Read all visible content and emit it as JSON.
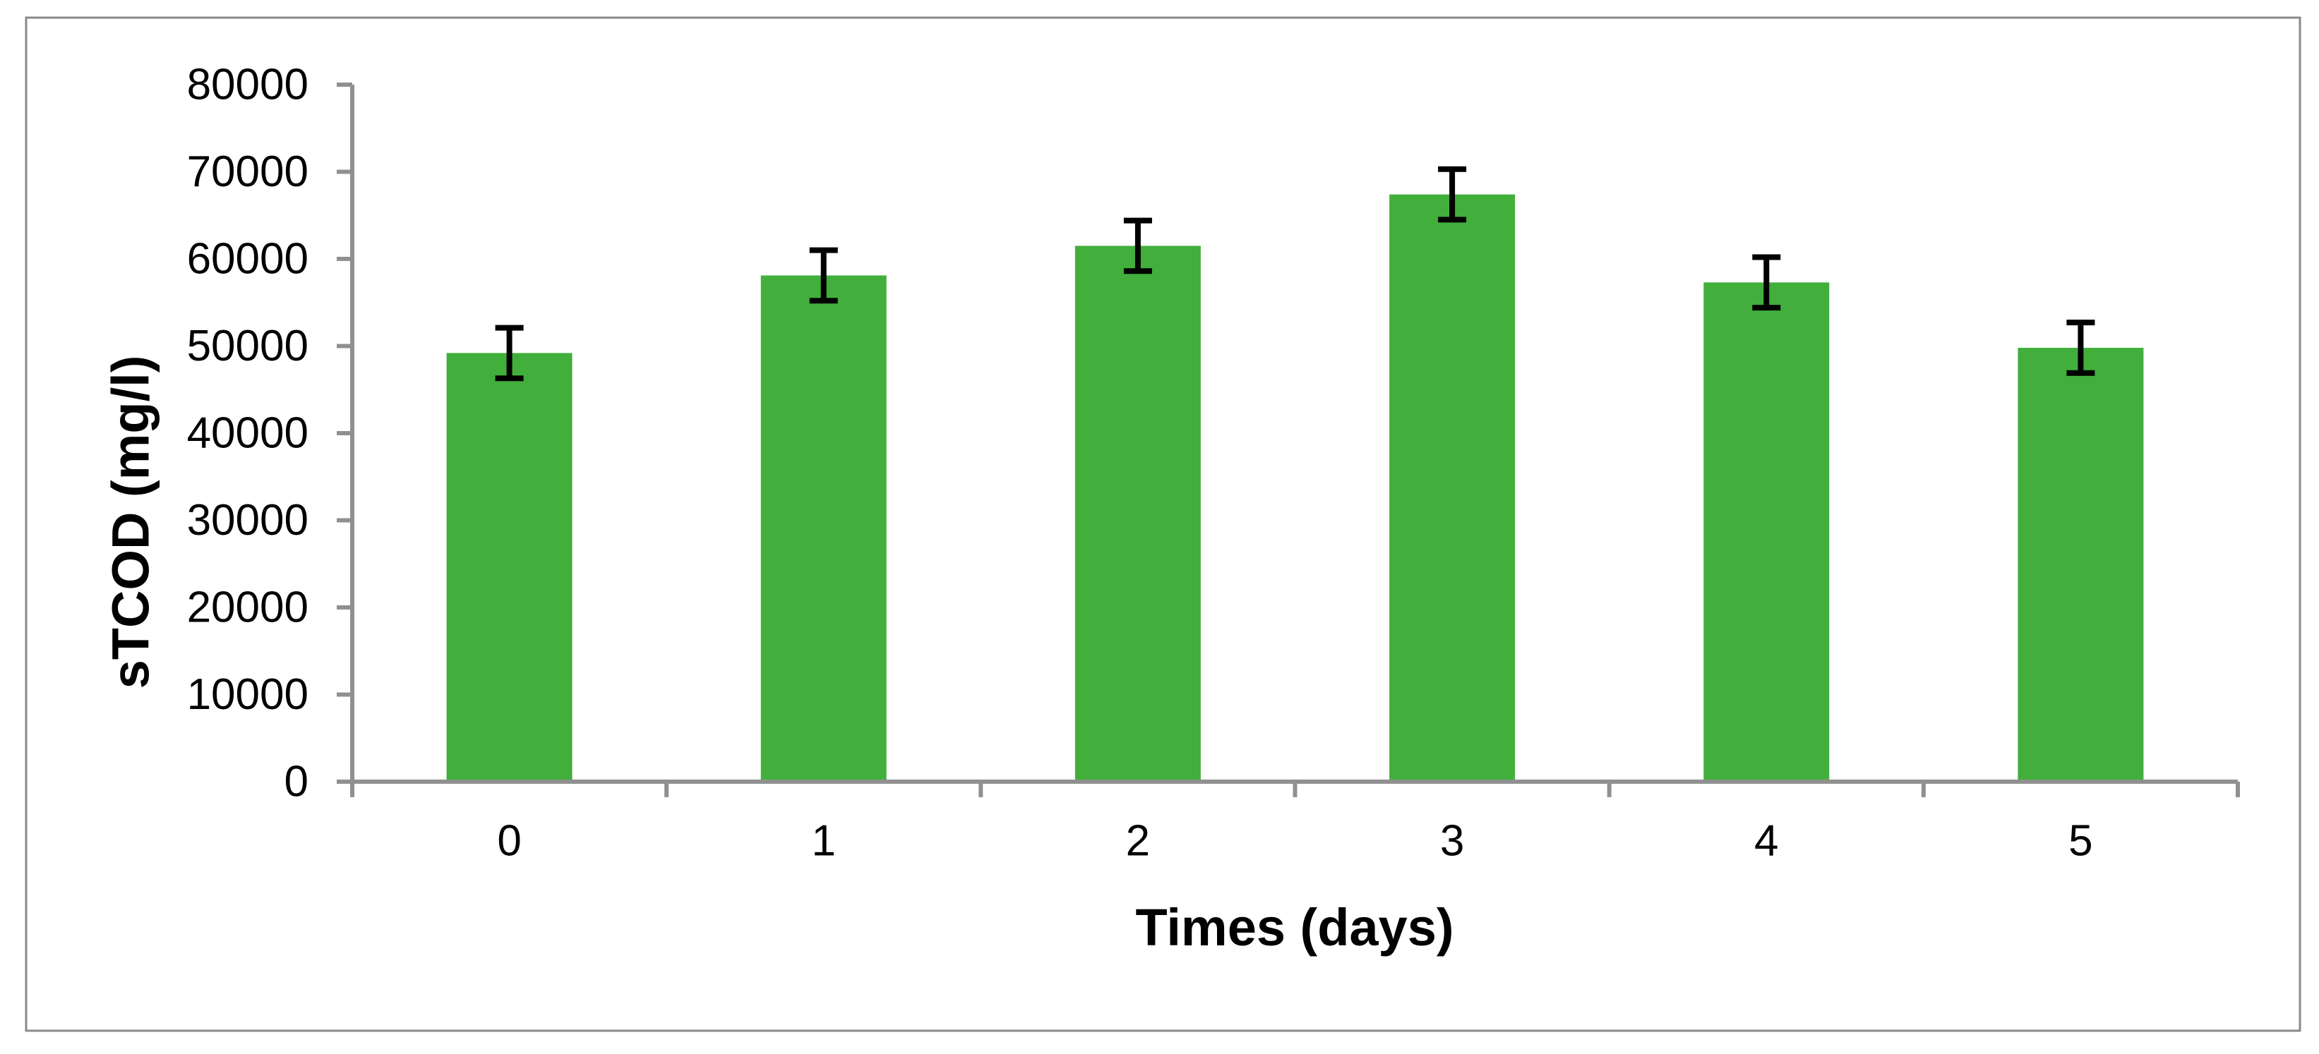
{
  "chart_data": {
    "type": "bar",
    "title": "",
    "categories": [
      "0",
      "1",
      "2",
      "3",
      "4",
      "5"
    ],
    "values": [
      49200,
      58100,
      61500,
      67400,
      57300,
      49800
    ],
    "error_bars": [
      2900,
      2900,
      2900,
      2900,
      2900,
      2900
    ],
    "xlabel": "Times (days)",
    "ylabel": "sTCOD (mg/l)",
    "ylim": [
      0,
      80000
    ],
    "ytick_step": 10000,
    "ytick_labels": [
      "0",
      "10000",
      "20000",
      "30000",
      "40000",
      "50000",
      "60000",
      "70000",
      "80000"
    ],
    "grid": "off",
    "legend": "none",
    "bar_color": "#42AF3C",
    "error_bar_color": "#000000",
    "axis_color": "#909090",
    "border_color": "#8A8A8A",
    "text_color": "#000000",
    "background_color": "#FFFFFF"
  }
}
